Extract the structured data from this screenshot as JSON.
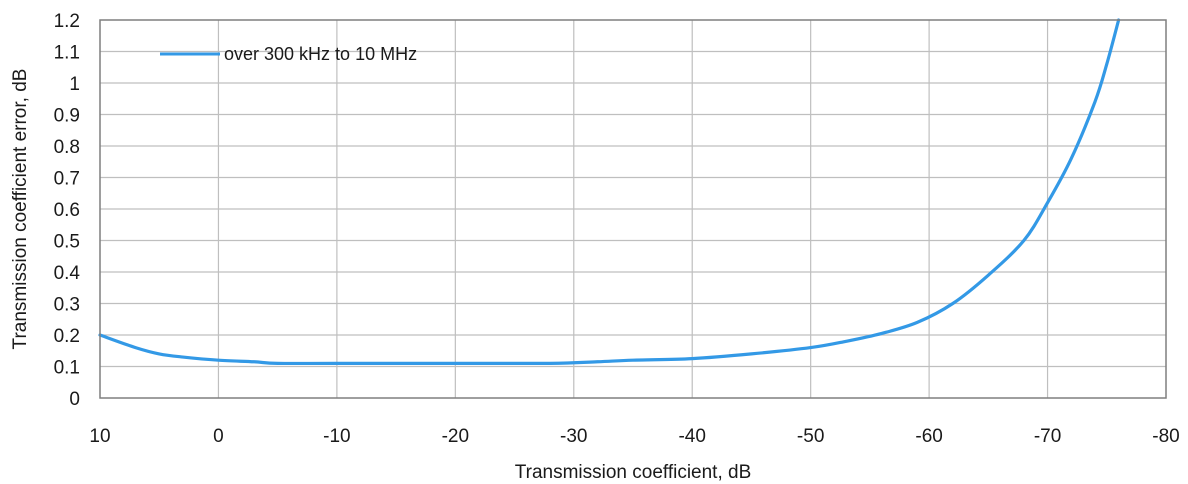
{
  "chart_data": {
    "type": "line",
    "title": "",
    "xlabel": "Transmission coefficient, dB",
    "ylabel": "Transmission coefficient error, dB",
    "xlim": [
      10,
      -80
    ],
    "ylim": [
      0,
      1.2
    ],
    "x_ticks": [
      10,
      0,
      -10,
      -20,
      -30,
      -40,
      -50,
      -60,
      -70,
      -80
    ],
    "x_tick_labels": [
      "10",
      "0",
      "-10",
      "-20",
      "-30",
      "-40",
      "-50",
      "-60",
      "-70",
      "-80"
    ],
    "y_ticks": [
      0,
      0.1,
      0.2,
      0.3,
      0.4,
      0.5,
      0.6,
      0.7,
      0.8,
      0.9,
      1.0,
      1.1,
      1.2
    ],
    "y_tick_labels": [
      "0",
      "0.1",
      "0.2",
      "0.3",
      "0.4",
      "0.5",
      "0.6",
      "0.7",
      "0.8",
      "0.9",
      "1",
      "1.1",
      "1.2"
    ],
    "grid": true,
    "legend_position": "top-left",
    "series": [
      {
        "name": "over 300 kHz to 10 MHz",
        "color": "#3399e6",
        "x": [
          10,
          7,
          5,
          3,
          0,
          -3,
          -5,
          -10,
          -20,
          -28,
          -32,
          -35,
          -40,
          -45,
          -50,
          -53,
          -56,
          -59,
          -62,
          -65,
          -68,
          -70,
          -72,
          -74,
          -75,
          -76
        ],
        "y": [
          0.2,
          0.16,
          0.14,
          0.13,
          0.12,
          0.115,
          0.11,
          0.11,
          0.11,
          0.11,
          0.115,
          0.12,
          0.125,
          0.14,
          0.16,
          0.18,
          0.205,
          0.24,
          0.3,
          0.39,
          0.5,
          0.62,
          0.76,
          0.94,
          1.06,
          1.2
        ]
      }
    ]
  }
}
